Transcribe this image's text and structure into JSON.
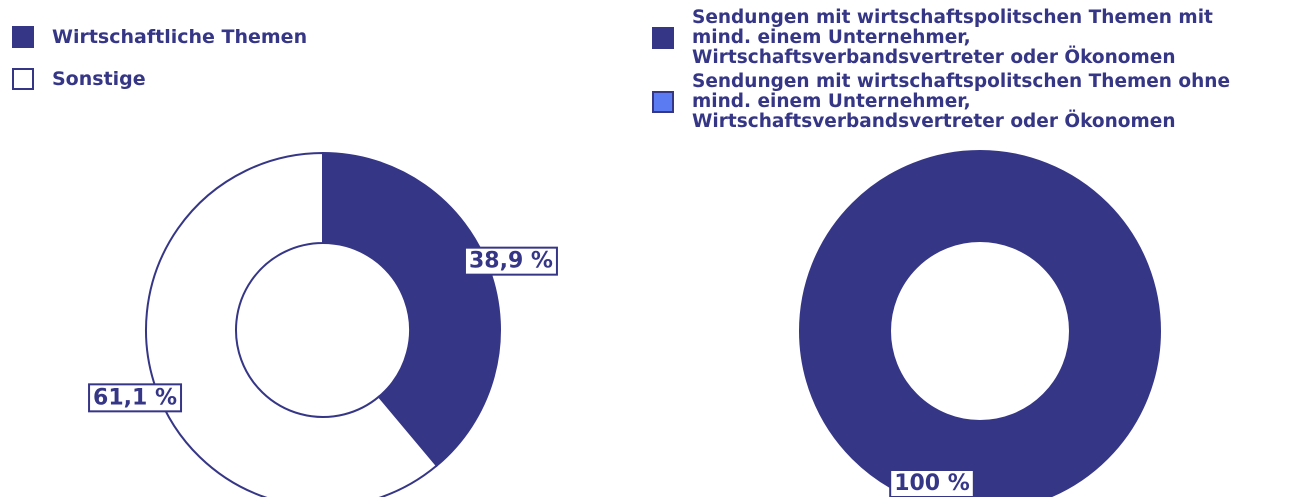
{
  "chart_data": [
    {
      "type": "pie",
      "categories": [
        "Wirtschaftliche Themen",
        "Sonstige"
      ],
      "values": [
        38.9,
        61.1
      ],
      "value_labels": [
        "38,9 %",
        "61,1 %"
      ],
      "colors": [
        "#363687",
        "#ffffff"
      ]
    },
    {
      "type": "pie",
      "categories": [
        "Sendungen mit wirtschaftspolitschen Themen mit mind. einem Unternehmer, Wirtschaftsverbandsvertreter oder Ökonomen",
        "Sendungen mit wirtschaftspolitschen Themen ohne mind. einem Unternehmer, Wirtschaftsverbandsvertreter oder Ökonomen"
      ],
      "values": [
        100,
        0
      ],
      "value_labels": [
        "100 %",
        null
      ],
      "colors": [
        "#363687",
        "#5b7bf2"
      ]
    }
  ]
}
